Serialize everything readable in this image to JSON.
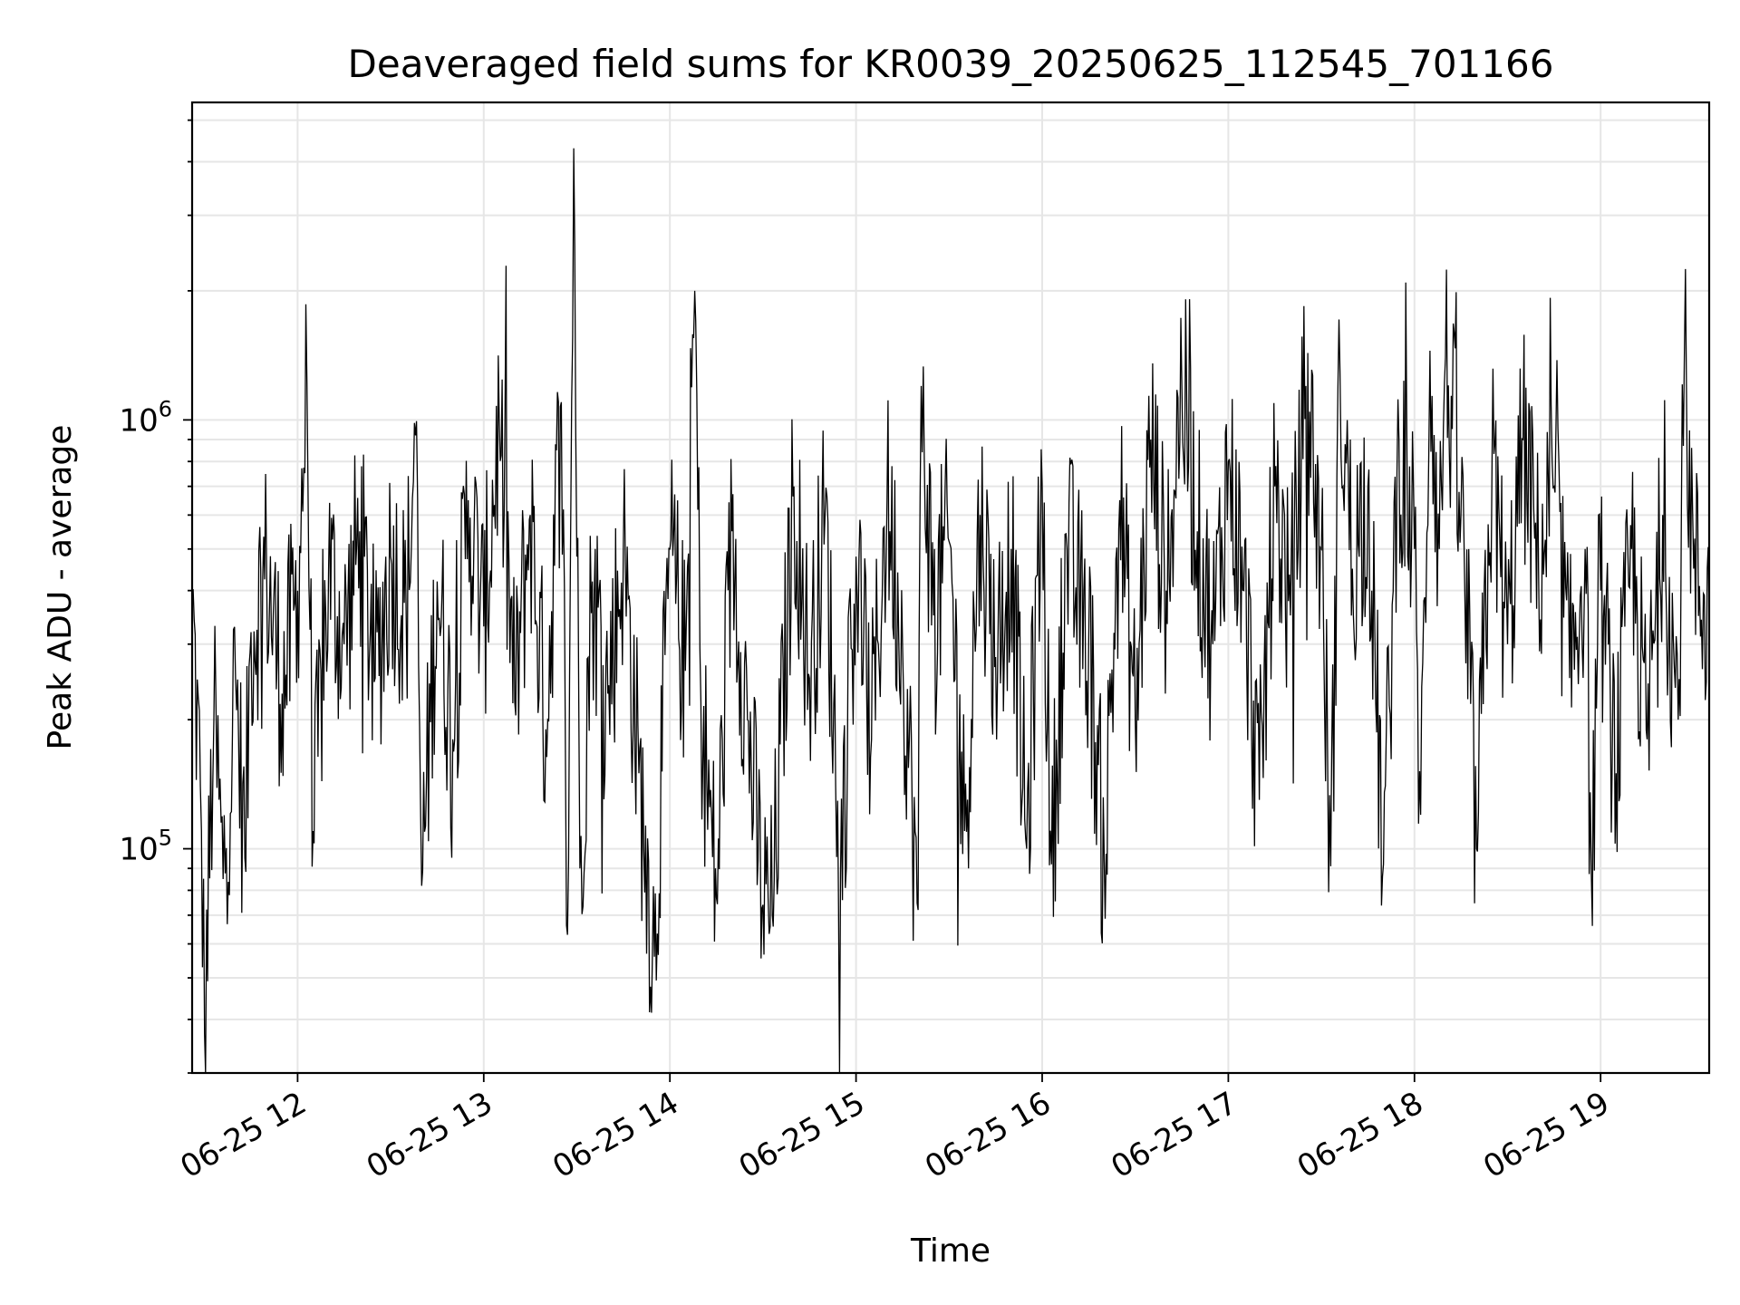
{
  "chart_data": {
    "type": "line",
    "title": "Deaveraged field sums for KR0039_20250625_112545_701166",
    "xlabel": "Time",
    "ylabel": "Peak ADU - average",
    "yscale": "log",
    "ylim": [
      30000,
      5500000
    ],
    "xlim": [
      "2025-06-25T11:26:00",
      "2025-06-25T19:35:00"
    ],
    "grid": true,
    "x_ticks": [
      "2025-06-25T12:00",
      "2025-06-25T13:00",
      "2025-06-25T14:00",
      "2025-06-25T15:00",
      "2025-06-25T16:00",
      "2025-06-25T17:00",
      "2025-06-25T18:00",
      "2025-06-25T19:00"
    ],
    "x_tick_labels": [
      "06-25 12",
      "06-25 13",
      "06-25 14",
      "06-25 15",
      "06-25 16",
      "06-25 17",
      "06-25 18",
      "06-25 19"
    ],
    "y_ticks": [
      {
        "value": 100000,
        "base": "10",
        "exp": "5"
      },
      {
        "value": 1000000,
        "base": "10",
        "exp": "6"
      }
    ],
    "series": [
      {
        "color": "#000000",
        "points": [
          [
            "2025-06-25T11:26",
            380000
          ],
          [
            "2025-06-25T11:29",
            110000
          ],
          [
            "2025-06-25T11:30",
            37000
          ],
          [
            "2025-06-25T11:33",
            200000
          ],
          [
            "2025-06-25T11:36",
            85000
          ],
          [
            "2025-06-25T11:40",
            250000
          ],
          [
            "2025-06-25T11:43",
            95000
          ],
          [
            "2025-06-25T11:45",
            320000
          ],
          [
            "2025-06-25T11:50",
            450000
          ],
          [
            "2025-06-25T11:55",
            230000
          ],
          [
            "2025-06-25T12:00",
            400000
          ],
          [
            "2025-06-25T12:03",
            1220000
          ],
          [
            "2025-06-25T12:05",
            110000
          ],
          [
            "2025-06-25T12:10",
            450000
          ],
          [
            "2025-06-25T12:15",
            300000
          ],
          [
            "2025-06-25T12:20",
            550000
          ],
          [
            "2025-06-25T12:25",
            250000
          ],
          [
            "2025-06-25T12:30",
            480000
          ],
          [
            "2025-06-25T12:35",
            350000
          ],
          [
            "2025-06-25T12:38",
            920000
          ],
          [
            "2025-06-25T12:40",
            82000
          ],
          [
            "2025-06-25T12:45",
            420000
          ],
          [
            "2025-06-25T12:50",
            180000
          ],
          [
            "2025-06-25T12:55",
            650000
          ],
          [
            "2025-06-25T13:00",
            330000
          ],
          [
            "2025-06-25T13:05",
            1000000
          ],
          [
            "2025-06-25T13:10",
            220000
          ],
          [
            "2025-06-25T13:15",
            600000
          ],
          [
            "2025-06-25T13:20",
            190000
          ],
          [
            "2025-06-25T13:25",
            1100000
          ],
          [
            "2025-06-25T13:27",
            63000
          ],
          [
            "2025-06-25T13:29",
            4300000
          ],
          [
            "2025-06-25T13:31",
            90000
          ],
          [
            "2025-06-25T13:35",
            420000
          ],
          [
            "2025-06-25T13:40",
            230000
          ],
          [
            "2025-06-25T13:45",
            500000
          ],
          [
            "2025-06-25T13:50",
            150000
          ],
          [
            "2025-06-25T13:55",
            56000
          ],
          [
            "2025-06-25T14:00",
            500000
          ],
          [
            "2025-06-25T14:05",
            260000
          ],
          [
            "2025-06-25T14:08",
            2000000
          ],
          [
            "2025-06-25T14:10",
            220000
          ],
          [
            "2025-06-25T14:15",
            77000
          ],
          [
            "2025-06-25T14:20",
            550000
          ],
          [
            "2025-06-25T14:25",
            200000
          ],
          [
            "2025-06-25T14:30",
            74000
          ],
          [
            "2025-06-25T14:33",
            70000
          ],
          [
            "2025-06-25T14:40",
            700000
          ],
          [
            "2025-06-25T14:45",
            250000
          ],
          [
            "2025-06-25T14:50",
            600000
          ],
          [
            "2025-06-25T14:55",
            88000
          ],
          [
            "2025-06-25T15:00",
            480000
          ],
          [
            "2025-06-25T15:05",
            180000
          ],
          [
            "2025-06-25T15:10",
            650000
          ],
          [
            "2025-06-25T15:15",
            300000
          ],
          [
            "2025-06-25T15:20",
            72000
          ],
          [
            "2025-06-25T15:21",
            1200000
          ],
          [
            "2025-06-25T15:25",
            350000
          ],
          [
            "2025-06-25T15:30",
            520000
          ],
          [
            "2025-06-25T15:35",
            110000
          ],
          [
            "2025-06-25T15:40",
            600000
          ],
          [
            "2025-06-25T15:45",
            280000
          ],
          [
            "2025-06-25T15:50",
            500000
          ],
          [
            "2025-06-25T15:55",
            100000
          ],
          [
            "2025-06-25T16:00",
            700000
          ],
          [
            "2025-06-25T16:03",
            92000
          ],
          [
            "2025-06-25T16:08",
            500000
          ],
          [
            "2025-06-25T16:15",
            300000
          ],
          [
            "2025-06-25T16:20",
            93000
          ],
          [
            "2025-06-25T16:25",
            650000
          ],
          [
            "2025-06-25T16:30",
            200000
          ],
          [
            "2025-06-25T16:35",
            900000
          ],
          [
            "2025-06-25T16:40",
            400000
          ],
          [
            "2025-06-25T16:45",
            1250000
          ],
          [
            "2025-06-25T16:50",
            550000
          ],
          [
            "2025-06-25T16:55",
            300000
          ],
          [
            "2025-06-25T17:00",
            800000
          ],
          [
            "2025-06-25T17:05",
            400000
          ],
          [
            "2025-06-25T17:10",
            130000
          ],
          [
            "2025-06-25T17:15",
            700000
          ],
          [
            "2025-06-25T17:20",
            350000
          ],
          [
            "2025-06-25T17:25",
            1200000
          ],
          [
            "2025-06-25T17:30",
            500000
          ],
          [
            "2025-06-25T17:33",
            91000
          ],
          [
            "2025-06-25T17:36",
            1300000
          ],
          [
            "2025-06-25T17:40",
            450000
          ],
          [
            "2025-06-25T17:45",
            700000
          ],
          [
            "2025-06-25T17:50",
            92000
          ],
          [
            "2025-06-25T17:55",
            900000
          ],
          [
            "2025-06-25T18:00",
            500000
          ],
          [
            "2025-06-25T18:02",
            120000
          ],
          [
            "2025-06-25T18:05",
            1450000
          ],
          [
            "2025-06-25T18:08",
            500000
          ],
          [
            "2025-06-25T18:10",
            1400000
          ],
          [
            "2025-06-25T18:15",
            600000
          ],
          [
            "2025-06-25T18:20",
            100000
          ],
          [
            "2025-06-25T18:25",
            800000
          ],
          [
            "2025-06-25T18:30",
            300000
          ],
          [
            "2025-06-25T18:35",
            900000
          ],
          [
            "2025-06-25T18:40",
            450000
          ],
          [
            "2025-06-25T18:45",
            700000
          ],
          [
            "2025-06-25T18:50",
            250000
          ],
          [
            "2025-06-25T18:55",
            500000
          ],
          [
            "2025-06-25T18:57",
            88000
          ],
          [
            "2025-06-25T19:00",
            400000
          ],
          [
            "2025-06-25T19:05",
            150000
          ],
          [
            "2025-06-25T19:10",
            500000
          ],
          [
            "2025-06-25T19:15",
            180000
          ],
          [
            "2025-06-25T19:20",
            600000
          ],
          [
            "2025-06-25T19:25",
            200000
          ],
          [
            "2025-06-25T19:27",
            1400000
          ],
          [
            "2025-06-25T19:30",
            450000
          ],
          [
            "2025-06-25T19:35",
            350000
          ]
        ]
      }
    ]
  }
}
